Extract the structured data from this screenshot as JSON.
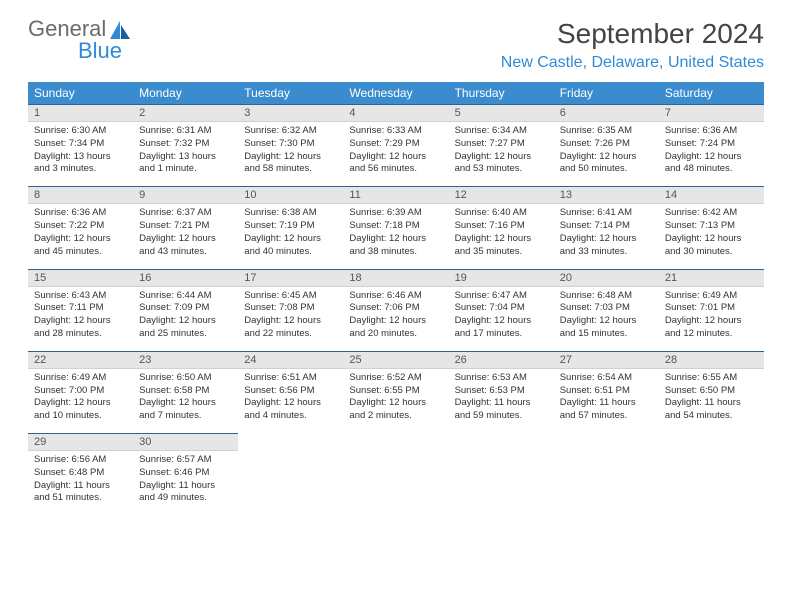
{
  "logo": {
    "line1": "General",
    "line2": "Blue"
  },
  "title": "September 2024",
  "location": "New Castle, Delaware, United States",
  "colors": {
    "header_bg": "#3a8ccf",
    "header_text": "#ffffff",
    "accent": "#2f8bd8",
    "logo_gray": "#6b6b6b",
    "daynum_bg": "#e6e6e6",
    "rule": "#2f6294"
  },
  "weekdays": [
    "Sunday",
    "Monday",
    "Tuesday",
    "Wednesday",
    "Thursday",
    "Friday",
    "Saturday"
  ],
  "weeks": [
    [
      {
        "n": "1",
        "sunrise": "6:30 AM",
        "sunset": "7:34 PM",
        "daylight": "13 hours and 3 minutes."
      },
      {
        "n": "2",
        "sunrise": "6:31 AM",
        "sunset": "7:32 PM",
        "daylight": "13 hours and 1 minute."
      },
      {
        "n": "3",
        "sunrise": "6:32 AM",
        "sunset": "7:30 PM",
        "daylight": "12 hours and 58 minutes."
      },
      {
        "n": "4",
        "sunrise": "6:33 AM",
        "sunset": "7:29 PM",
        "daylight": "12 hours and 56 minutes."
      },
      {
        "n": "5",
        "sunrise": "6:34 AM",
        "sunset": "7:27 PM",
        "daylight": "12 hours and 53 minutes."
      },
      {
        "n": "6",
        "sunrise": "6:35 AM",
        "sunset": "7:26 PM",
        "daylight": "12 hours and 50 minutes."
      },
      {
        "n": "7",
        "sunrise": "6:36 AM",
        "sunset": "7:24 PM",
        "daylight": "12 hours and 48 minutes."
      }
    ],
    [
      {
        "n": "8",
        "sunrise": "6:36 AM",
        "sunset": "7:22 PM",
        "daylight": "12 hours and 45 minutes."
      },
      {
        "n": "9",
        "sunrise": "6:37 AM",
        "sunset": "7:21 PM",
        "daylight": "12 hours and 43 minutes."
      },
      {
        "n": "10",
        "sunrise": "6:38 AM",
        "sunset": "7:19 PM",
        "daylight": "12 hours and 40 minutes."
      },
      {
        "n": "11",
        "sunrise": "6:39 AM",
        "sunset": "7:18 PM",
        "daylight": "12 hours and 38 minutes."
      },
      {
        "n": "12",
        "sunrise": "6:40 AM",
        "sunset": "7:16 PM",
        "daylight": "12 hours and 35 minutes."
      },
      {
        "n": "13",
        "sunrise": "6:41 AM",
        "sunset": "7:14 PM",
        "daylight": "12 hours and 33 minutes."
      },
      {
        "n": "14",
        "sunrise": "6:42 AM",
        "sunset": "7:13 PM",
        "daylight": "12 hours and 30 minutes."
      }
    ],
    [
      {
        "n": "15",
        "sunrise": "6:43 AM",
        "sunset": "7:11 PM",
        "daylight": "12 hours and 28 minutes."
      },
      {
        "n": "16",
        "sunrise": "6:44 AM",
        "sunset": "7:09 PM",
        "daylight": "12 hours and 25 minutes."
      },
      {
        "n": "17",
        "sunrise": "6:45 AM",
        "sunset": "7:08 PM",
        "daylight": "12 hours and 22 minutes."
      },
      {
        "n": "18",
        "sunrise": "6:46 AM",
        "sunset": "7:06 PM",
        "daylight": "12 hours and 20 minutes."
      },
      {
        "n": "19",
        "sunrise": "6:47 AM",
        "sunset": "7:04 PM",
        "daylight": "12 hours and 17 minutes."
      },
      {
        "n": "20",
        "sunrise": "6:48 AM",
        "sunset": "7:03 PM",
        "daylight": "12 hours and 15 minutes."
      },
      {
        "n": "21",
        "sunrise": "6:49 AM",
        "sunset": "7:01 PM",
        "daylight": "12 hours and 12 minutes."
      }
    ],
    [
      {
        "n": "22",
        "sunrise": "6:49 AM",
        "sunset": "7:00 PM",
        "daylight": "12 hours and 10 minutes."
      },
      {
        "n": "23",
        "sunrise": "6:50 AM",
        "sunset": "6:58 PM",
        "daylight": "12 hours and 7 minutes."
      },
      {
        "n": "24",
        "sunrise": "6:51 AM",
        "sunset": "6:56 PM",
        "daylight": "12 hours and 4 minutes."
      },
      {
        "n": "25",
        "sunrise": "6:52 AM",
        "sunset": "6:55 PM",
        "daylight": "12 hours and 2 minutes."
      },
      {
        "n": "26",
        "sunrise": "6:53 AM",
        "sunset": "6:53 PM",
        "daylight": "11 hours and 59 minutes."
      },
      {
        "n": "27",
        "sunrise": "6:54 AM",
        "sunset": "6:51 PM",
        "daylight": "11 hours and 57 minutes."
      },
      {
        "n": "28",
        "sunrise": "6:55 AM",
        "sunset": "6:50 PM",
        "daylight": "11 hours and 54 minutes."
      }
    ],
    [
      {
        "n": "29",
        "sunrise": "6:56 AM",
        "sunset": "6:48 PM",
        "daylight": "11 hours and 51 minutes."
      },
      {
        "n": "30",
        "sunrise": "6:57 AM",
        "sunset": "6:46 PM",
        "daylight": "11 hours and 49 minutes."
      },
      null,
      null,
      null,
      null,
      null
    ]
  ]
}
